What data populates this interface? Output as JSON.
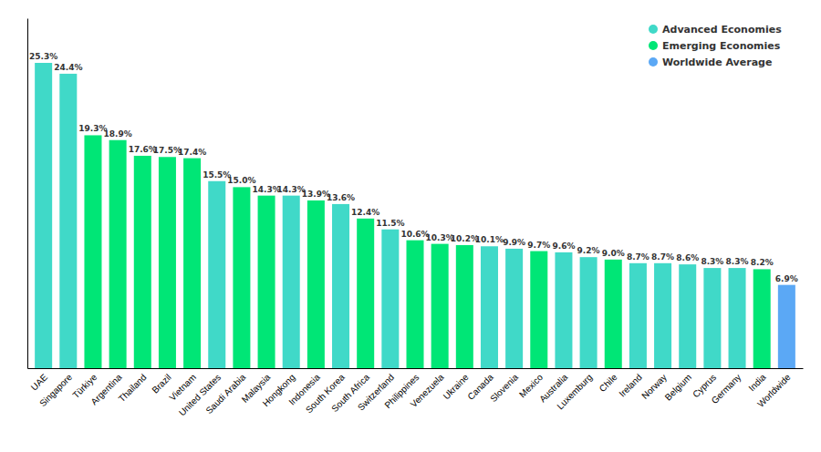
{
  "chart_data": {
    "type": "bar",
    "categories": [
      "UAE",
      "Singapore",
      "Türkiye",
      "Argentina",
      "Thailand",
      "Brazil",
      "Vietnam",
      "United States",
      "Saudi Arabia",
      "Malaysia",
      "Hongkong",
      "Indonesia",
      "South Korea",
      "South Africa",
      "Switzerland",
      "Philippines",
      "Venezuela",
      "Ukraine",
      "Canada",
      "Slovenia",
      "Mexico",
      "Australia",
      "Luxemburg",
      "Chile",
      "Ireland",
      "Norway",
      "Belgium",
      "Cyprus",
      "Germany",
      "India",
      "Worldwide"
    ],
    "series": [
      {
        "name": "Advanced Economies",
        "color": "#40D9C8",
        "values": [
          25.3,
          24.4,
          null,
          null,
          null,
          null,
          null,
          15.5,
          null,
          null,
          14.3,
          null,
          13.6,
          null,
          11.5,
          null,
          null,
          null,
          10.1,
          9.9,
          null,
          9.6,
          9.2,
          null,
          8.7,
          8.7,
          8.6,
          8.3,
          8.3,
          null,
          null
        ],
        "value_labels": [
          "25.3%",
          "24.4%",
          null,
          null,
          null,
          null,
          null,
          "15.5%",
          null,
          null,
          "14.3%",
          null,
          "13.6%",
          null,
          "11.5%",
          null,
          null,
          null,
          "10.1%",
          "9.9%",
          null,
          "9.6%",
          "9.2%",
          null,
          "8.7%",
          "8.7%",
          "8.6%",
          "8.3%",
          "8.3%",
          null,
          null
        ]
      },
      {
        "name": "Emerging Economies",
        "color": "#00E676",
        "values": [
          null,
          null,
          19.3,
          18.9,
          17.6,
          17.5,
          17.4,
          null,
          15.0,
          14.3,
          null,
          13.9,
          null,
          12.4,
          null,
          10.6,
          10.3,
          10.2,
          null,
          null,
          9.7,
          null,
          null,
          9.0,
          null,
          null,
          null,
          null,
          null,
          8.2,
          null
        ],
        "value_labels": [
          null,
          null,
          "19.3%",
          "18.9%",
          "17.6%",
          "17.5%",
          "17.4%",
          null,
          "15.0%",
          "14.3%",
          null,
          "13.9%",
          null,
          "12.4%",
          null,
          "10.6%",
          "10.3%",
          "10.2%",
          null,
          null,
          "9.7%",
          null,
          null,
          "9.0%",
          null,
          null,
          null,
          null,
          null,
          "8.2%",
          null
        ]
      },
      {
        "name": "Worldwide Average",
        "color": "#5BA8F5",
        "values": [
          null,
          null,
          null,
          null,
          null,
          null,
          null,
          null,
          null,
          null,
          null,
          null,
          null,
          null,
          null,
          null,
          null,
          null,
          null,
          null,
          null,
          null,
          null,
          null,
          null,
          null,
          null,
          null,
          null,
          null,
          6.9
        ],
        "value_labels": [
          null,
          null,
          null,
          null,
          null,
          null,
          null,
          null,
          null,
          null,
          null,
          null,
          null,
          null,
          null,
          null,
          null,
          null,
          null,
          null,
          null,
          null,
          null,
          null,
          null,
          null,
          null,
          null,
          null,
          null,
          "6.9%"
        ]
      }
    ],
    "stacked": true,
    "ylim": [
      0,
      29
    ],
    "yticks": [],
    "tick_labels": "x",
    "data_labels": true,
    "legend": "upper right",
    "grid": false
  }
}
